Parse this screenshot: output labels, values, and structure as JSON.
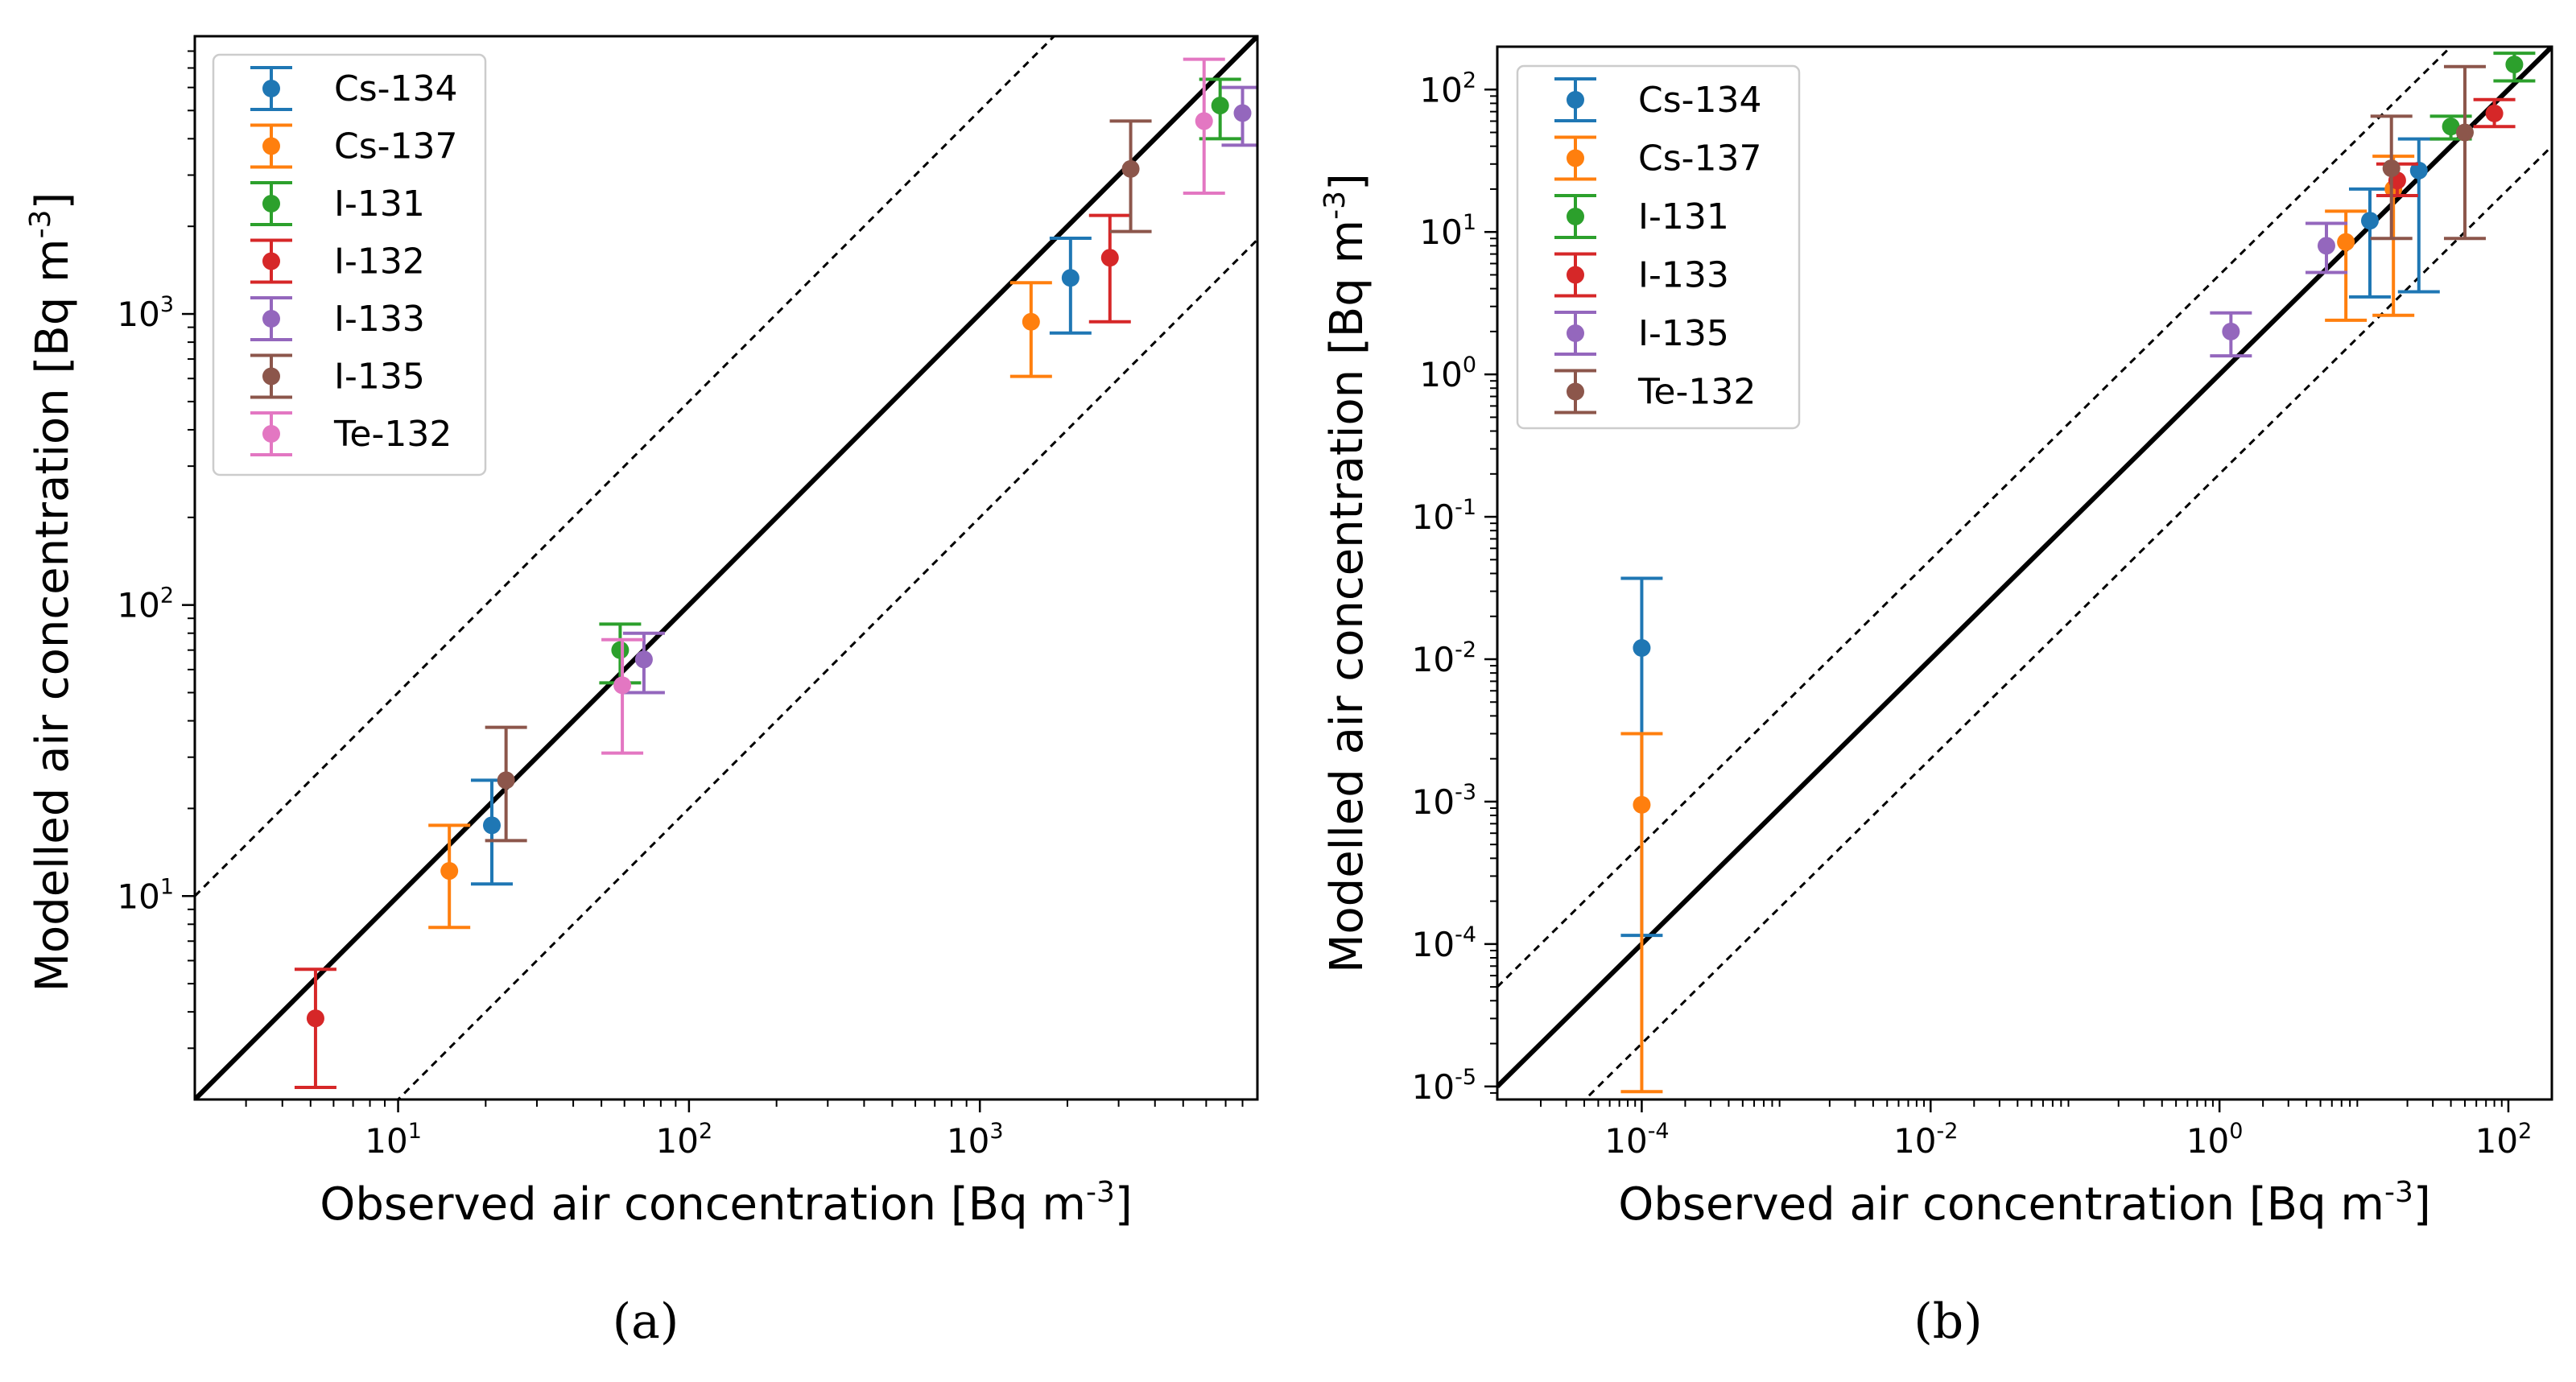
{
  "chart_data": [
    {
      "type": "scatter",
      "panel_label": "(a)",
      "xlabel": "Observed air concentration [Bq m",
      "ylabel": "Modelled air concentration [Bq m",
      "unit_exponent": "-3",
      "unit_close": "]",
      "xscale": "log",
      "yscale": "log",
      "xlim": [
        2,
        9000
      ],
      "ylim": [
        2,
        9000
      ],
      "xticks": [
        {
          "value": 10,
          "base": "10",
          "exp": "1"
        },
        {
          "value": 100,
          "base": "10",
          "exp": "2"
        },
        {
          "value": 1000,
          "base": "10",
          "exp": "3"
        }
      ],
      "yticks": [
        {
          "value": 10,
          "base": "10",
          "exp": "1"
        },
        {
          "value": 100,
          "base": "10",
          "exp": "2"
        },
        {
          "value": 1000,
          "base": "10",
          "exp": "3"
        }
      ],
      "reference_lines": [
        {
          "style": "solid",
          "factor": 1
        },
        {
          "style": "dashed",
          "factor": 5
        },
        {
          "style": "dashed",
          "factor": 0.2
        }
      ],
      "legend_position": "upper-left",
      "series": [
        {
          "name": "Cs-134",
          "color": "#1f77b4",
          "points": [
            {
              "x": 21,
              "y": 17.5,
              "lo": 11,
              "hi": 25
            },
            {
              "x": 2050,
              "y": 1330,
              "lo": 860,
              "hi": 1820
            }
          ]
        },
        {
          "name": "Cs-137",
          "color": "#ff7f0e",
          "points": [
            {
              "x": 15,
              "y": 12.2,
              "lo": 7.8,
              "hi": 17.5
            },
            {
              "x": 1500,
              "y": 940,
              "lo": 610,
              "hi": 1280
            }
          ]
        },
        {
          "name": "I-131",
          "color": "#2ca02c",
          "points": [
            {
              "x": 58,
              "y": 70,
              "lo": 54,
              "hi": 86
            },
            {
              "x": 6700,
              "y": 5200,
              "lo": 4000,
              "hi": 6400
            }
          ]
        },
        {
          "name": "I-132",
          "color": "#d62728",
          "points": [
            {
              "x": 5.2,
              "y": 3.8,
              "lo": 2.2,
              "hi": 5.6
            },
            {
              "x": 2800,
              "y": 1560,
              "lo": 940,
              "hi": 2180
            }
          ]
        },
        {
          "name": "I-133",
          "color": "#9467bd",
          "points": [
            {
              "x": 70,
              "y": 65,
              "lo": 50,
              "hi": 80
            },
            {
              "x": 8000,
              "y": 4900,
              "lo": 3800,
              "hi": 6000
            }
          ]
        },
        {
          "name": "I-135",
          "color": "#8c564b",
          "points": [
            {
              "x": 23.5,
              "y": 25,
              "lo": 15.5,
              "hi": 38
            },
            {
              "x": 3300,
              "y": 3150,
              "lo": 1920,
              "hi": 4600
            }
          ]
        },
        {
          "name": "Te-132",
          "color": "#e377c2",
          "points": [
            {
              "x": 59,
              "y": 53,
              "lo": 31,
              "hi": 76
            },
            {
              "x": 5900,
              "y": 4600,
              "lo": 2600,
              "hi": 7500
            }
          ]
        }
      ]
    },
    {
      "type": "scatter",
      "panel_label": "(b)",
      "xlabel": "Observed air concentration [Bq m",
      "ylabel": "Modelled air concentration [Bq m",
      "unit_exponent": "-3",
      "unit_close": "]",
      "xscale": "log",
      "yscale": "log",
      "xlim": [
        1e-05,
        200
      ],
      "ylim": [
        8.1e-06,
        200
      ],
      "xticks": [
        {
          "value": 0.0001,
          "base": "10",
          "exp": "-4"
        },
        {
          "value": 0.01,
          "base": "10",
          "exp": "-2"
        },
        {
          "value": 1,
          "base": "10",
          "exp": "0"
        },
        {
          "value": 100,
          "base": "10",
          "exp": "2"
        }
      ],
      "yticks": [
        {
          "value": 1e-05,
          "base": "10",
          "exp": "-5"
        },
        {
          "value": 0.0001,
          "base": "10",
          "exp": "-4"
        },
        {
          "value": 0.001,
          "base": "10",
          "exp": "-3"
        },
        {
          "value": 0.01,
          "base": "10",
          "exp": "-2"
        },
        {
          "value": 0.1,
          "base": "10",
          "exp": "-1"
        },
        {
          "value": 1,
          "base": "10",
          "exp": "0"
        },
        {
          "value": 10,
          "base": "10",
          "exp": "1"
        },
        {
          "value": 100,
          "base": "10",
          "exp": "2"
        }
      ],
      "reference_lines": [
        {
          "style": "solid",
          "factor": 1
        },
        {
          "style": "dashed",
          "factor": 5
        },
        {
          "style": "dashed",
          "factor": 0.2
        }
      ],
      "legend_position": "upper-left",
      "series": [
        {
          "name": "Cs-134",
          "color": "#1f77b4",
          "points": [
            {
              "x": 0.0001,
              "y": 0.012,
              "lo": 0.000115,
              "hi": 0.037
            },
            {
              "x": 11,
              "y": 12,
              "lo": 3.5,
              "hi": 20
            },
            {
              "x": 24,
              "y": 27,
              "lo": 3.8,
              "hi": 45
            }
          ]
        },
        {
          "name": "Cs-137",
          "color": "#ff7f0e",
          "points": [
            {
              "x": 0.0001,
              "y": 0.00095,
              "lo": 9.2e-06,
              "hi": 0.003
            },
            {
              "x": 7.5,
              "y": 8.5,
              "lo": 2.4,
              "hi": 14
            },
            {
              "x": 16,
              "y": 20,
              "lo": 2.6,
              "hi": 34
            }
          ]
        },
        {
          "name": "I-131",
          "color": "#2ca02c",
          "points": [
            {
              "x": 40,
              "y": 55,
              "lo": 45,
              "hi": 65
            },
            {
              "x": 110,
              "y": 150,
              "lo": 115,
              "hi": 180
            }
          ]
        },
        {
          "name": "I-133",
          "color": "#d62728",
          "points": [
            {
              "x": 17,
              "y": 23,
              "lo": 18,
              "hi": 30
            },
            {
              "x": 80,
              "y": 68,
              "lo": 55,
              "hi": 85
            }
          ]
        },
        {
          "name": "I-135",
          "color": "#9467bd",
          "points": [
            {
              "x": 1.2,
              "y": 2.0,
              "lo": 1.35,
              "hi": 2.7
            },
            {
              "x": 5.5,
              "y": 8,
              "lo": 5.2,
              "hi": 11.5
            }
          ]
        },
        {
          "name": "Te-132",
          "color": "#8c564b",
          "points": [
            {
              "x": 15.5,
              "y": 28,
              "lo": 9,
              "hi": 65
            },
            {
              "x": 50,
              "y": 50,
              "lo": 9,
              "hi": 145
            }
          ]
        }
      ]
    }
  ]
}
